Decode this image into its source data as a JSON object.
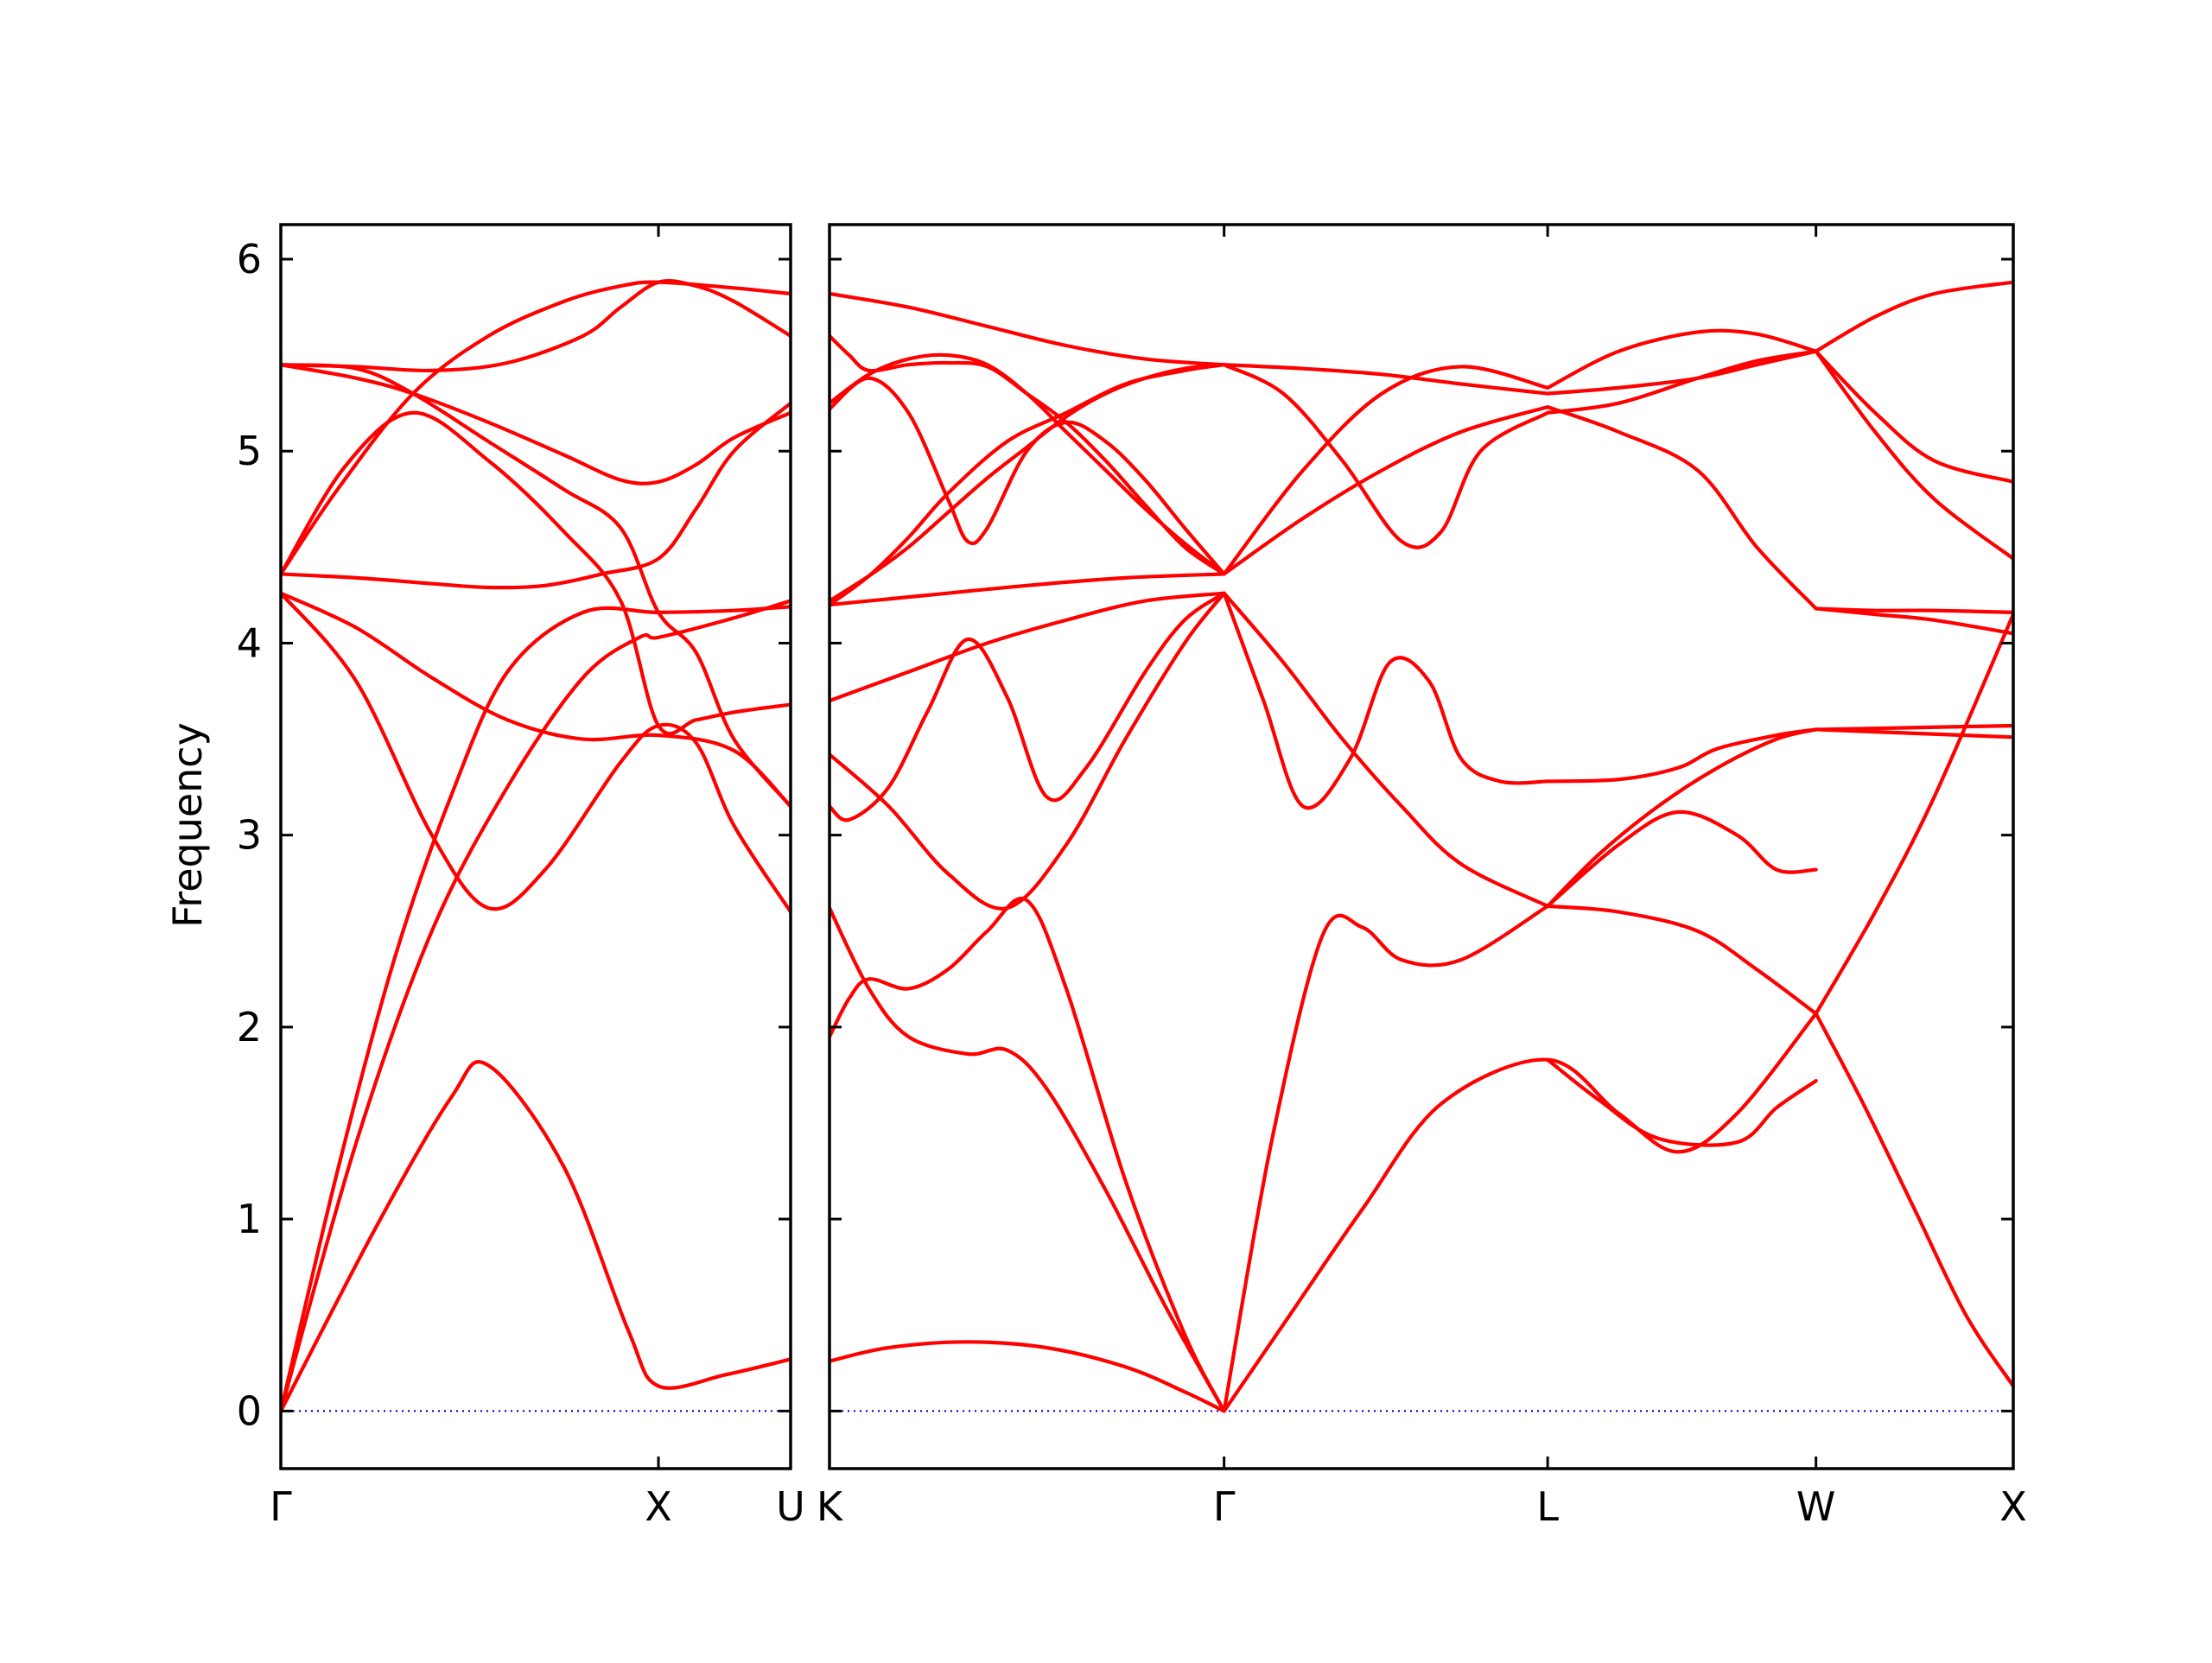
{
  "chart_data": {
    "type": "line",
    "ylabel": "Frequency",
    "ylim": [
      -0.3,
      6.18
    ],
    "yticks": [
      0,
      1,
      2,
      3,
      4,
      5,
      6
    ],
    "colors": {
      "bands": "#ff0000",
      "zero_line": "#0000cc",
      "frame": "#000000"
    },
    "grid": false,
    "segments": [
      {
        "name": "Γ–X–U",
        "x_range": [
          0,
          1.35
        ],
        "tick_positions": [
          0,
          1.0,
          1.35
        ],
        "tick_labels": [
          "Γ",
          "X",
          "U"
        ],
        "series": [
          {
            "x": [
              0,
              0.25,
              0.45,
              0.55,
              0.75,
              0.92,
              1.0,
              1.18,
              1.35
            ],
            "y": [
              0.0,
              0.95,
              1.63,
              1.8,
              1.27,
              0.42,
              0.13,
              0.19,
              0.27
            ]
          },
          {
            "x": [
              0,
              0.2,
              0.4,
              0.6,
              0.8,
              0.95,
              1.0,
              1.18,
              1.35
            ],
            "y": [
              0.0,
              1.4,
              2.5,
              3.25,
              3.82,
              4.03,
              4.03,
              4.12,
              4.22
            ]
          },
          {
            "x": [
              0,
              0.2,
              0.4,
              0.55,
              0.7,
              0.9,
              1.0,
              1.1,
              1.2,
              1.35
            ],
            "y": [
              4.26,
              3.8,
              3.0,
              2.62,
              2.82,
              3.38,
              3.57,
              3.48,
              3.05,
              2.6
            ]
          },
          {
            "x": [
              0,
              0.2,
              0.4,
              0.6,
              0.8,
              1.0,
              1.2,
              1.35
            ],
            "y": [
              4.26,
              4.08,
              3.82,
              3.6,
              3.5,
              3.52,
              3.44,
              3.15
            ]
          },
          {
            "x": [
              0,
              0.15,
              0.3,
              0.45,
              0.6,
              0.8,
              1.0,
              1.2,
              1.35
            ],
            "y": [
              0.0,
              1.25,
              2.35,
              3.2,
              3.85,
              4.16,
              4.16,
              4.17,
              4.19
            ]
          },
          {
            "x": [
              0,
              0.2,
              0.4,
              0.55,
              0.7,
              0.85,
              1.0,
              1.1,
              1.2,
              1.35
            ],
            "y": [
              4.36,
              4.34,
              4.31,
              4.29,
              4.3,
              4.36,
              4.44,
              4.7,
              5.0,
              5.25
            ]
          },
          {
            "x": [
              0,
              0.17,
              0.35,
              0.55,
              0.75,
              0.9,
              1.0,
              1.1,
              1.2,
              1.35
            ],
            "y": [
              4.36,
              4.92,
              5.2,
              4.95,
              4.58,
              4.22,
              3.57,
              3.6,
              3.64,
              3.68
            ]
          },
          {
            "x": [
              0,
              0.2,
              0.35,
              0.55,
              0.75,
              0.9,
              1.0,
              1.1,
              1.2,
              1.35
            ],
            "y": [
              5.45,
              5.43,
              5.3,
              5.05,
              4.8,
              4.6,
              4.16,
              3.95,
              3.5,
              3.15
            ]
          },
          {
            "x": [
              0,
              0.2,
              0.35,
              0.55,
              0.75,
              0.9,
              1.0,
              1.1,
              1.2,
              1.35
            ],
            "y": [
              5.45,
              5.38,
              5.3,
              5.15,
              4.98,
              4.85,
              4.84,
              4.93,
              5.07,
              5.2
            ]
          },
          {
            "x": [
              0,
              0.15,
              0.35,
              0.55,
              0.75,
              0.9,
              1.0,
              1.2,
              1.35
            ],
            "y": [
              4.36,
              4.8,
              5.3,
              5.6,
              5.78,
              5.86,
              5.88,
              5.85,
              5.82
            ]
          },
          {
            "x": [
              0,
              0.2,
              0.4,
              0.6,
              0.8,
              0.9,
              1.0,
              1.1,
              1.2,
              1.35
            ],
            "y": [
              5.45,
              5.44,
              5.42,
              5.46,
              5.6,
              5.75,
              5.88,
              5.86,
              5.78,
              5.6
            ]
          }
        ]
      },
      {
        "name": "K–Γ–L–W–X",
        "x_range": [
          0,
          3.0
        ],
        "tick_positions": [
          0,
          1.0,
          1.82,
          2.5,
          3.0
        ],
        "tick_labels": [
          "K",
          "Γ",
          "L",
          "W",
          "X"
        ],
        "series": [
          {
            "x": [
              0,
              0.15,
              0.35,
              0.55,
              0.75,
              0.9,
              1.0
            ],
            "y": [
              0.26,
              0.33,
              0.36,
              0.33,
              0.23,
              0.1,
              0.0
            ]
          },
          {
            "x": [
              0,
              0.1,
              0.2,
              0.35,
              0.45,
              0.55,
              0.7,
              0.85,
              1.0
            ],
            "y": [
              2.62,
              2.2,
              1.95,
              1.86,
              1.88,
              1.68,
              1.15,
              0.55,
              0.0
            ]
          },
          {
            "x": [
              0,
              0.05,
              0.1,
              0.2,
              0.3,
              0.4,
              0.5,
              0.6,
              0.75,
              0.9,
              1.0
            ],
            "y": [
              1.95,
              2.15,
              2.25,
              2.2,
              2.3,
              2.5,
              2.66,
              2.2,
              1.2,
              0.4,
              0.0
            ]
          },
          {
            "x": [
              0,
              0.15,
              0.3,
              0.45,
              0.6,
              0.75,
              0.9,
              1.0
            ],
            "y": [
              3.42,
              3.15,
              2.8,
              2.62,
              2.95,
              3.5,
              4.0,
              4.26
            ]
          },
          {
            "x": [
              0,
              0.05,
              0.15,
              0.25,
              0.35,
              0.45,
              0.55,
              0.65,
              0.8,
              0.9,
              1.0
            ],
            "y": [
              3.15,
              3.08,
              3.25,
              3.65,
              4.02,
              3.72,
              3.2,
              3.35,
              3.85,
              4.12,
              4.26
            ]
          },
          {
            "x": [
              0,
              0.2,
              0.4,
              0.6,
              0.8,
              1.0
            ],
            "y": [
              3.7,
              3.85,
              4.0,
              4.12,
              4.22,
              4.26
            ]
          },
          {
            "x": [
              0,
              0.25,
              0.5,
              0.75,
              1.0
            ],
            "y": [
              4.2,
              4.25,
              4.3,
              4.34,
              4.36
            ]
          },
          {
            "x": [
              0,
              0.1,
              0.2,
              0.3,
              0.4,
              0.5,
              0.6,
              0.7,
              0.8,
              0.9,
              1.0
            ],
            "y": [
              4.22,
              4.35,
              4.5,
              4.68,
              4.86,
              5.02,
              5.18,
              5.3,
              5.38,
              5.43,
              5.45
            ]
          },
          {
            "x": [
              0,
              0.1,
              0.2,
              0.3,
              0.35,
              0.4,
              0.5,
              0.6,
              0.7,
              0.8,
              0.9,
              1.0
            ],
            "y": [
              5.22,
              5.38,
              5.2,
              4.75,
              4.53,
              4.6,
              5.0,
              5.15,
              5.05,
              4.85,
              4.6,
              4.36
            ]
          },
          {
            "x": [
              0,
              0.1,
              0.2,
              0.3,
              0.4,
              0.5,
              0.6,
              0.7,
              0.8,
              0.9,
              1.0
            ],
            "y": [
              5.25,
              5.4,
              5.48,
              5.5,
              5.45,
              5.3,
              5.1,
              4.9,
              4.7,
              4.52,
              4.36
            ]
          },
          {
            "x": [
              0,
              0.05,
              0.1,
              0.2,
              0.3,
              0.4,
              0.5,
              0.6,
              0.7,
              0.8,
              0.9,
              1.0
            ],
            "y": [
              5.6,
              5.5,
              5.42,
              5.45,
              5.46,
              5.44,
              5.3,
              5.15,
              4.95,
              4.72,
              4.5,
              4.36
            ]
          },
          {
            "x": [
              0,
              0.1,
              0.2,
              0.3,
              0.45,
              0.6,
              0.75,
              0.9,
              1.0
            ],
            "y": [
              4.2,
              4.35,
              4.55,
              4.78,
              5.05,
              5.2,
              5.35,
              5.42,
              5.45
            ]
          },
          {
            "x": [
              0,
              0.2,
              0.4,
              0.6,
              0.8,
              1.0
            ],
            "y": [
              5.82,
              5.75,
              5.65,
              5.55,
              5.48,
              5.45
            ]
          },
          {
            "x": [
              1.0,
              1.15,
              1.35,
              1.55,
              1.82,
              2.0,
              2.15,
              2.3,
              2.5
            ],
            "y": [
              0.0,
              0.45,
              1.05,
              1.6,
              1.83,
              1.55,
              1.35,
              1.55,
              2.07
            ]
          },
          {
            "x": [
              1.82,
              1.95,
              2.1,
              2.3,
              2.4,
              2.5
            ],
            "y": [
              1.83,
              1.62,
              1.42,
              1.4,
              1.58,
              1.72
            ]
          },
          {
            "x": [
              1.0,
              1.12,
              1.25,
              1.35,
              1.45,
              1.6,
              1.82
            ],
            "y": [
              0.0,
              1.4,
              2.48,
              2.52,
              2.35,
              2.35,
              2.63
            ]
          },
          {
            "x": [
              1.82,
              2.0,
              2.2,
              2.35,
              2.5
            ],
            "y": [
              2.63,
              2.6,
              2.5,
              2.3,
              2.07
            ]
          },
          {
            "x": [
              2.5,
              2.65,
              2.8,
              3.0
            ],
            "y": [
              2.07,
              2.6,
              3.2,
              4.15
            ]
          },
          {
            "x": [
              2.5,
              2.62,
              2.75,
              2.88,
              3.0
            ],
            "y": [
              2.07,
              1.6,
              1.05,
              0.5,
              0.13
            ]
          },
          {
            "x": [
              1.0,
              1.15,
              1.3,
              1.45,
              1.6,
              1.82
            ],
            "y": [
              4.26,
              3.9,
              3.5,
              3.15,
              2.85,
              2.63
            ]
          },
          {
            "x": [
              1.0,
              1.1,
              1.2,
              1.32,
              1.42,
              1.52,
              1.6,
              1.7,
              1.82
            ],
            "y": [
              4.26,
              3.7,
              3.15,
              3.4,
              3.9,
              3.8,
              3.4,
              3.28,
              3.28
            ]
          },
          {
            "x": [
              1.82,
              2.0,
              2.15,
              2.25,
              2.4,
              2.5
            ],
            "y": [
              3.28,
              3.29,
              3.35,
              3.45,
              3.52,
              3.55
            ]
          },
          {
            "x": [
              1.82,
              2.0,
              2.15,
              2.3,
              2.4,
              2.5
            ],
            "y": [
              2.63,
              2.95,
              3.12,
              3.0,
              2.82,
              2.82
            ]
          },
          {
            "x": [
              1.82,
              1.95,
              2.1,
              2.25,
              2.4,
              2.5
            ],
            "y": [
              2.63,
              2.9,
              3.15,
              3.35,
              3.5,
              3.55
            ]
          },
          {
            "x": [
              2.5,
              2.75,
              3.0
            ],
            "y": [
              3.55,
              3.56,
              3.57
            ]
          },
          {
            "x": [
              2.5,
              2.75,
              3.0
            ],
            "y": [
              3.55,
              3.53,
              3.51
            ]
          },
          {
            "x": [
              1.0,
              1.2,
              1.4,
              1.6,
              1.82
            ],
            "y": [
              4.36,
              4.9,
              5.3,
              5.44,
              5.33
            ]
          },
          {
            "x": [
              1.0,
              1.15,
              1.3,
              1.45,
              1.55,
              1.65,
              1.82
            ],
            "y": [
              5.45,
              5.3,
              4.95,
              4.53,
              4.58,
              5.0,
              5.2
            ]
          },
          {
            "x": [
              1.0,
              1.2,
              1.4,
              1.6,
              1.82
            ],
            "y": [
              4.36,
              4.65,
              4.9,
              5.1,
              5.23
            ]
          },
          {
            "x": [
              1.0,
              1.2,
              1.4,
              1.6,
              1.82
            ],
            "y": [
              5.45,
              5.43,
              5.4,
              5.35,
              5.3
            ]
          },
          {
            "x": [
              1.82,
              2.0,
              2.2,
              2.35,
              2.5
            ],
            "y": [
              5.33,
              5.52,
              5.62,
              5.61,
              5.52
            ]
          },
          {
            "x": [
              1.82,
              2.0,
              2.2,
              2.35,
              2.5
            ],
            "y": [
              5.3,
              5.33,
              5.38,
              5.45,
              5.52
            ]
          },
          {
            "x": [
              1.82,
              2.0,
              2.2,
              2.35,
              2.5
            ],
            "y": [
              5.23,
              5.1,
              4.9,
              4.5,
              4.18
            ]
          },
          {
            "x": [
              1.82,
              2.0,
              2.2,
              2.35,
              2.5
            ],
            "y": [
              5.2,
              5.25,
              5.38,
              5.47,
              5.52
            ]
          },
          {
            "x": [
              2.5,
              2.65,
              2.8,
              3.0
            ],
            "y": [
              4.18,
              4.17,
              4.17,
              4.16
            ]
          },
          {
            "x": [
              2.5,
              2.65,
              2.8,
              3.0
            ],
            "y": [
              4.18,
              4.15,
              4.12,
              4.05
            ]
          },
          {
            "x": [
              2.5,
              2.65,
              2.8,
              3.0
            ],
            "y": [
              5.52,
              5.7,
              5.82,
              5.88
            ]
          },
          {
            "x": [
              2.5,
              2.65,
              2.8,
              3.0
            ],
            "y": [
              5.52,
              5.2,
              4.95,
              4.84
            ]
          },
          {
            "x": [
              2.5,
              2.65,
              2.8,
              3.0
            ],
            "y": [
              5.52,
              5.1,
              4.75,
              4.44
            ]
          }
        ]
      }
    ]
  }
}
